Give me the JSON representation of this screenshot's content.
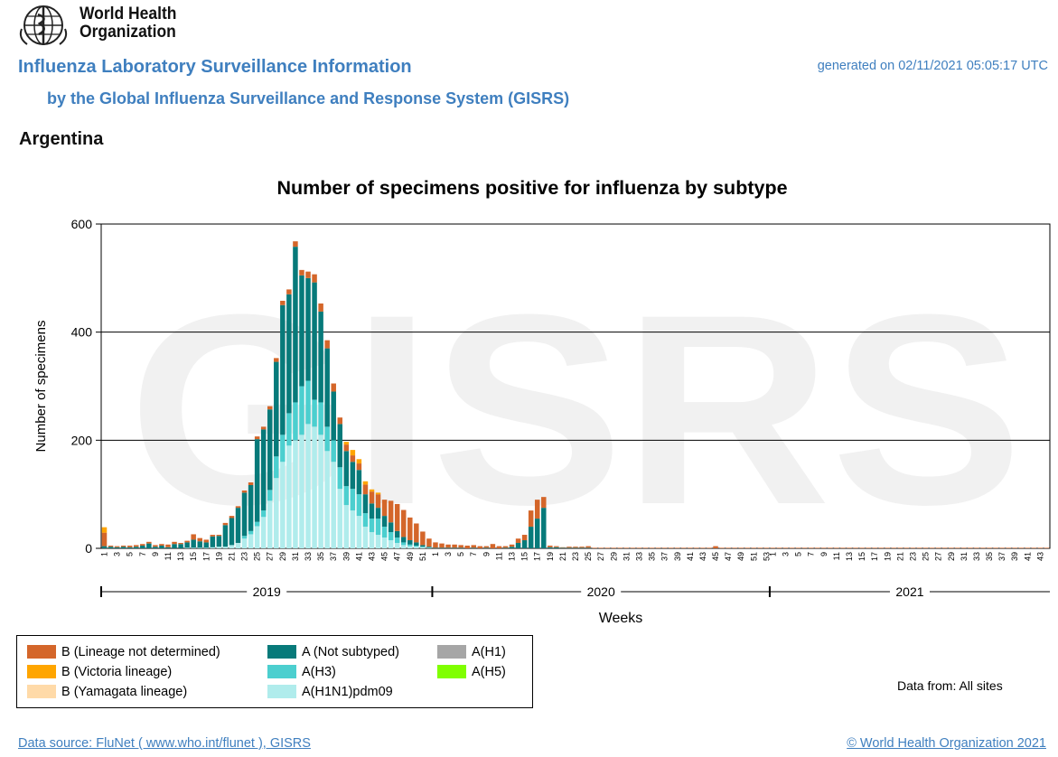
{
  "header": {
    "org_line1": "World Health",
    "org_line2": "Organization",
    "title": "Influenza Laboratory Surveillance Information",
    "subtitle": "by the Global Influenza Surveillance and Response System (GISRS)",
    "generated": "generated on 02/11/2021 05:05:17 UTC",
    "country": "Argentina"
  },
  "chart_data": {
    "type": "bar",
    "stacked": true,
    "title": "Number of specimens positive for influenza by subtype",
    "xlabel": "Weeks",
    "ylabel": "Number of specimens",
    "ylim": [
      0,
      600
    ],
    "yticks": [
      0,
      200,
      400,
      600
    ],
    "grid": "horizontal",
    "watermark": "GISRS",
    "years": [
      {
        "label": "2019",
        "start_week_index": 0,
        "weeks": 52
      },
      {
        "label": "2020",
        "start_week_index": 52,
        "weeks": 53
      },
      {
        "label": "2021",
        "start_week_index": 105,
        "weeks": 44
      }
    ],
    "total_weeks": 149,
    "series": [
      {
        "name": "A(H1N1)pdm09",
        "color": "#b0ecec",
        "values": [
          0,
          0,
          0,
          0,
          0,
          0,
          0,
          0,
          0,
          0,
          0,
          0,
          0,
          1,
          1,
          1,
          1,
          2,
          3,
          3,
          6,
          10,
          18,
          26,
          41,
          58,
          88,
          130,
          160,
          190,
          200,
          210,
          230,
          225,
          210,
          180,
          160,
          110,
          80,
          70,
          60,
          40,
          30,
          25,
          20,
          15,
          10,
          6,
          4,
          3,
          2,
          1,
          0,
          0,
          0,
          0,
          0,
          0,
          0,
          0,
          0,
          0,
          0,
          0,
          0,
          0,
          0,
          0,
          0,
          0,
          0,
          0,
          0,
          0,
          0,
          0,
          0,
          0,
          0,
          0,
          0,
          0,
          0,
          0,
          0,
          0,
          0,
          0,
          0,
          0,
          0,
          0,
          0,
          0,
          0,
          0,
          0,
          0,
          0,
          0,
          0,
          0,
          0,
          0,
          0,
          0,
          0,
          0,
          0,
          0,
          0,
          0,
          0,
          0,
          0,
          0,
          0,
          0,
          0,
          0,
          0,
          0,
          0,
          0,
          0,
          0,
          0,
          0,
          0,
          0,
          0,
          0,
          0,
          0,
          0,
          0,
          0,
          0,
          0,
          0,
          0,
          0,
          0,
          0,
          0,
          0,
          0,
          0,
          0
        ]
      },
      {
        "name": "A(H3)",
        "color": "#4ccfcf",
        "values": [
          0,
          0,
          0,
          0,
          0,
          0,
          0,
          0,
          0,
          0,
          0,
          0,
          0,
          0,
          0,
          0,
          0,
          0,
          0,
          0,
          0,
          0,
          5,
          6,
          8,
          12,
          20,
          40,
          50,
          60,
          70,
          90,
          80,
          50,
          60,
          45,
          40,
          40,
          35,
          40,
          40,
          25,
          25,
          30,
          20,
          15,
          10,
          5,
          3,
          2,
          1,
          0,
          0,
          0,
          0,
          0,
          0,
          0,
          0,
          0,
          0,
          0,
          0,
          0,
          0,
          0,
          0,
          0,
          0,
          0,
          0,
          0,
          0,
          0,
          0,
          0,
          0,
          0,
          0,
          0,
          0,
          0,
          0,
          0,
          0,
          0,
          0,
          0,
          0,
          0,
          0,
          0,
          0,
          0,
          0,
          0,
          0,
          0,
          0,
          0,
          0,
          0,
          0,
          0,
          0,
          0,
          0,
          0,
          0,
          0,
          0,
          0,
          0,
          0,
          0,
          0,
          0,
          0,
          0,
          0,
          0,
          0,
          0,
          0,
          0,
          0,
          0,
          0,
          0,
          0,
          0,
          0,
          0,
          0,
          0,
          0,
          0,
          0,
          0,
          0,
          0,
          0,
          0,
          0,
          0,
          0,
          0,
          0,
          0
        ]
      },
      {
        "name": "A (Not subtyped)",
        "color": "#077a7a",
        "values": [
          4,
          3,
          2,
          3,
          2,
          3,
          5,
          9,
          3,
          5,
          2,
          8,
          8,
          10,
          15,
          12,
          10,
          20,
          20,
          40,
          50,
          65,
          80,
          85,
          153,
          150,
          149,
          175,
          240,
          220,
          288,
          205,
          190,
          217,
          168,
          145,
          90,
          80,
          65,
          50,
          45,
          35,
          28,
          20,
          20,
          18,
          12,
          10,
          8,
          6,
          3,
          2,
          1,
          1,
          1,
          1,
          1,
          0,
          1,
          0,
          1,
          0,
          0,
          1,
          3,
          10,
          15,
          40,
          55,
          75,
          2,
          2,
          1,
          1,
          1,
          1,
          1,
          0,
          0,
          0,
          0,
          0,
          0,
          0,
          0,
          0,
          0,
          0,
          0,
          0,
          0,
          0,
          0,
          0,
          0,
          0,
          0,
          0,
          0,
          0,
          0,
          0,
          0,
          0,
          0,
          0,
          0,
          0,
          0,
          0,
          0,
          0,
          0,
          0,
          0,
          0,
          0,
          0,
          0,
          0,
          0,
          0,
          0,
          0,
          0,
          0,
          0,
          0,
          0,
          0,
          0,
          0,
          0,
          0,
          0,
          0,
          0,
          0,
          0,
          0,
          0,
          0,
          0,
          0,
          0,
          0,
          0,
          0,
          0
        ]
      },
      {
        "name": "B (Lineage not determined)",
        "color": "#d4662a",
        "values": [
          25,
          2,
          2,
          2,
          3,
          3,
          3,
          3,
          3,
          3,
          5,
          4,
          2,
          3,
          10,
          6,
          5,
          3,
          2,
          4,
          4,
          3,
          4,
          5,
          5,
          5,
          6,
          7,
          8,
          9,
          10,
          10,
          12,
          15,
          15,
          15,
          15,
          12,
          12,
          12,
          12,
          18,
          22,
          25,
          30,
          40,
          50,
          50,
          42,
          35,
          25,
          15,
          10,
          8,
          6,
          6,
          5,
          5,
          5,
          4,
          3,
          8,
          4,
          3,
          4,
          8,
          10,
          30,
          35,
          20,
          3,
          2,
          1,
          2,
          2,
          2,
          3,
          1,
          1,
          1,
          1,
          1,
          1,
          1,
          1,
          1,
          1,
          1,
          1,
          1,
          1,
          1,
          1,
          1,
          1,
          1,
          4,
          1,
          1,
          1,
          1,
          1,
          1,
          1,
          1,
          1,
          1,
          1,
          1,
          1,
          1,
          1,
          1,
          1,
          1,
          1,
          1,
          1,
          1,
          1,
          1,
          1,
          1,
          1,
          1,
          1,
          1,
          1,
          1,
          1,
          1,
          1,
          1,
          1,
          1,
          1,
          1,
          1,
          1,
          1,
          1,
          1,
          1,
          1,
          1,
          1,
          1,
          1,
          1
        ]
      },
      {
        "name": "B (Victoria lineage)",
        "color": "#ffa500",
        "values": [
          10,
          0,
          0,
          0,
          0,
          0,
          0,
          0,
          0,
          0,
          0,
          0,
          0,
          0,
          0,
          0,
          0,
          0,
          0,
          0,
          0,
          0,
          0,
          0,
          0,
          0,
          0,
          0,
          0,
          0,
          0,
          0,
          0,
          0,
          0,
          0,
          0,
          0,
          5,
          10,
          8,
          6,
          4,
          3,
          0,
          0,
          0,
          0,
          0,
          0,
          0,
          0,
          0,
          0,
          0,
          0,
          0,
          0,
          0,
          0,
          0,
          0,
          0,
          0,
          0,
          0,
          0,
          0,
          0,
          0,
          0,
          0,
          0,
          0,
          0,
          0,
          0,
          0,
          0,
          0,
          0,
          0,
          0,
          0,
          0,
          0,
          0,
          0,
          0,
          0,
          0,
          0,
          0,
          0,
          0,
          0,
          0,
          0,
          0,
          0,
          0,
          0,
          0,
          0,
          0,
          0,
          0,
          0,
          0,
          0,
          0,
          0,
          0,
          0,
          0,
          0,
          0,
          0,
          0,
          0,
          0,
          0,
          0,
          0,
          0,
          0,
          0,
          0,
          0,
          0,
          0,
          0,
          0,
          0,
          0,
          0,
          0,
          0,
          0,
          0,
          0,
          0,
          0,
          0,
          0,
          0,
          0,
          0,
          0
        ]
      },
      {
        "name": "B (Yamagata lineage)",
        "color": "#ffdaa8",
        "values": []
      },
      {
        "name": "A(H1)",
        "color": "#a6a6a6",
        "values": []
      },
      {
        "name": "A(H5)",
        "color": "#80ff00",
        "values": []
      }
    ],
    "legend_placement": "bottom"
  },
  "legend": {
    "items": [
      {
        "label": "B (Lineage not determined)",
        "color": "#d4662a"
      },
      {
        "label": "B (Victoria lineage)",
        "color": "#ffa500"
      },
      {
        "label": "B (Yamagata lineage)",
        "color": "#ffdaa8"
      },
      {
        "label": "A (Not subtyped)",
        "color": "#077a7a"
      },
      {
        "label": "A(H3)",
        "color": "#4ccfcf"
      },
      {
        "label": "A(H1N1)pdm09",
        "color": "#b0ecec"
      },
      {
        "label": "A(H1)",
        "color": "#a6a6a6"
      },
      {
        "label": "A(H5)",
        "color": "#80ff00"
      }
    ],
    "data_from": "Data from: All sites"
  },
  "footer": {
    "source": "Data source: FluNet ( www.who.int/flunet ), GISRS",
    "copyright": "© World Health Organization 2021"
  }
}
